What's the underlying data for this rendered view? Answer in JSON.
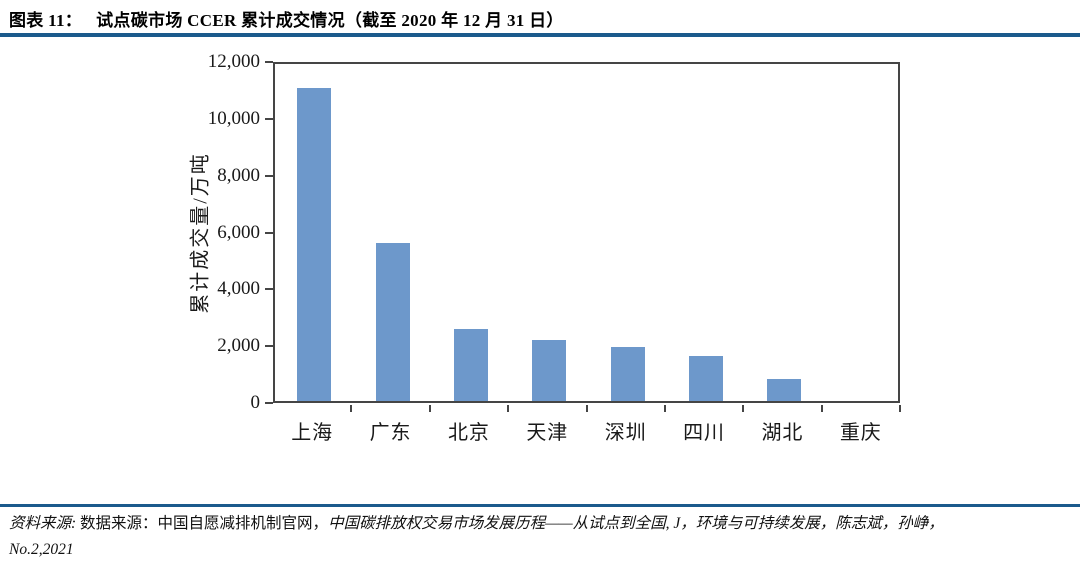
{
  "header": {
    "label": "图表 11：",
    "title": "试点碳市场 CCER 累计成交情况（截至 2020 年 12 月 31 日）"
  },
  "chart_data": {
    "type": "bar",
    "title": "试点碳市场 CCER 累计成交情况（截至 2020 年 12 月 31 日）",
    "categories": [
      "上海",
      "广东",
      "北京",
      "天津",
      "深圳",
      "四川",
      "湖北",
      "重庆"
    ],
    "values": [
      11000,
      5550,
      2550,
      2130,
      1900,
      1600,
      780,
      0
    ],
    "xlabel": "",
    "ylabel": "累计成交量/万吨",
    "ylim": [
      0,
      12000
    ],
    "ytick_labels": [
      "0",
      "2,000",
      "4,000",
      "6,000",
      "8,000",
      "10,000",
      "12,000"
    ],
    "grid": false,
    "legend": "none",
    "bar_color": "#6D98CB"
  },
  "footer": {
    "source_label": "资料来源:",
    "source_text": " 数据来源：中国自愿减排机制官网，",
    "source_citation": "中国碳排放权交易市场发展历程——从试点到全国, J，环境与可持续发展，陈志斌，孙峥，",
    "line2": "No.2,2021"
  },
  "colors": {
    "rule": "#1B5A8C",
    "bar": "#6D98CB",
    "axis": "#454545"
  }
}
